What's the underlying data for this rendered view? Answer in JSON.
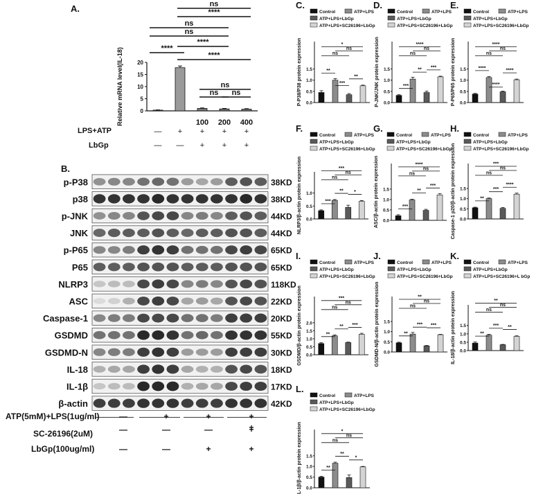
{
  "panel_letters": {
    "A": "A.",
    "B": "B.",
    "C": "C.",
    "D": "D.",
    "E": "E.",
    "F": "F.",
    "G": "G.",
    "H": "H.",
    "I": "I.",
    "J": "J.",
    "K": "K.",
    "L": "L."
  },
  "colors": {
    "control": "#111111",
    "atp_lps": "#8c8c8c",
    "lbgp": "#5a5a5a",
    "sc": "#d4d4d4",
    "blot_bg": "#f1f1f1",
    "band": "#1e1e1e"
  },
  "panelA": {
    "row_labels": [
      "LPS+ATP",
      "LbGp"
    ],
    "lps_atp": [
      "—",
      "+",
      "+",
      "+",
      "+"
    ],
    "lbgp": [
      "—",
      "—",
      "+",
      "+",
      "+"
    ],
    "dose": [
      "",
      "",
      "100",
      "200",
      "400"
    ]
  },
  "panelB": {
    "proteins": [
      "p-P38",
      "p38",
      "p-JNK",
      "JNK",
      "p-P65",
      "P65",
      "NLRP3",
      "ASC",
      "Caspase-1",
      "GSDMD",
      "GSDMD-N",
      "IL-18",
      "IL-1β",
      "β-actin"
    ],
    "sizes": [
      "38KD",
      "38KD",
      "44KD",
      "44KD",
      "65KD",
      "65KD",
      "118KD",
      "22KD",
      "20KD",
      "55KD",
      "30KD",
      "18KD",
      "17KD",
      "42KD"
    ],
    "intensity": [
      [
        0.45,
        0.5,
        0.5,
        0.6,
        0.65,
        0.6,
        0.4,
        0.35,
        0.4,
        0.7,
        0.75,
        0.7
      ],
      [
        0.9,
        0.9,
        0.9,
        0.9,
        0.95,
        0.9,
        0.9,
        0.9,
        0.9,
        0.9,
        0.95,
        0.9
      ],
      [
        0.45,
        0.5,
        0.5,
        0.75,
        0.8,
        0.8,
        0.5,
        0.55,
        0.5,
        0.7,
        0.75,
        0.7
      ],
      [
        0.65,
        0.7,
        0.7,
        0.7,
        0.75,
        0.7,
        0.65,
        0.7,
        0.7,
        0.75,
        0.75,
        0.7
      ],
      [
        0.5,
        0.5,
        0.55,
        0.85,
        0.9,
        0.85,
        0.6,
        0.6,
        0.6,
        0.8,
        0.85,
        0.8
      ],
      [
        0.7,
        0.7,
        0.7,
        0.75,
        0.75,
        0.75,
        0.7,
        0.7,
        0.7,
        0.75,
        0.75,
        0.75
      ],
      [
        0.2,
        0.25,
        0.25,
        0.8,
        0.85,
        0.8,
        0.5,
        0.55,
        0.5,
        0.75,
        0.8,
        0.75
      ],
      [
        0.1,
        0.15,
        0.3,
        0.8,
        0.85,
        0.8,
        0.35,
        0.4,
        0.35,
        0.75,
        0.8,
        0.75
      ],
      [
        0.5,
        0.55,
        0.55,
        0.8,
        0.8,
        0.8,
        0.6,
        0.6,
        0.55,
        0.85,
        0.85,
        0.85
      ],
      [
        0.6,
        0.6,
        0.6,
        0.95,
        0.95,
        0.9,
        0.6,
        0.65,
        0.6,
        0.9,
        0.9,
        0.9
      ],
      [
        0.5,
        0.55,
        0.55,
        0.85,
        0.9,
        0.85,
        0.4,
        0.4,
        0.4,
        0.85,
        0.85,
        0.85
      ],
      [
        0.3,
        0.35,
        0.35,
        0.85,
        0.9,
        0.85,
        0.35,
        0.3,
        0.3,
        0.75,
        0.8,
        0.75
      ],
      [
        0.2,
        0.25,
        0.25,
        0.95,
        0.95,
        0.95,
        0.3,
        0.35,
        0.35,
        0.8,
        0.85,
        0.85
      ],
      [
        0.85,
        0.85,
        0.85,
        0.9,
        0.9,
        0.9,
        0.85,
        0.85,
        0.85,
        0.9,
        0.9,
        0.9
      ]
    ],
    "treatment_labels": [
      "ATP(5mM)+LPS(1ug/ml)",
      "SC-26196(2uM)",
      "LbGp(100ug/ml)"
    ],
    "treatment_marks": [
      [
        "—",
        "+",
        "+",
        "+"
      ],
      [
        "—",
        "—",
        "—",
        "+"
      ],
      [
        "—",
        "—",
        "+",
        "+"
      ]
    ]
  },
  "chart_data": [
    {
      "id": "A",
      "type": "bar",
      "ylabel": "Relative mRNA level(IL-18)",
      "ylim": [
        0,
        20
      ],
      "yticks": [
        0,
        5,
        10,
        15,
        20
      ],
      "categories": [
        "",
        "",
        "100",
        "200",
        "400"
      ],
      "values": [
        0.3,
        17.8,
        1.0,
        0.8,
        0.7
      ],
      "errors": [
        0.1,
        0.7,
        0.2,
        0.2,
        0.2
      ],
      "annotations": [
        {
          "from": 1,
          "to": 4,
          "label": "ns"
        },
        {
          "from": 1,
          "to": 3,
          "label": "****"
        },
        {
          "from": 0,
          "to": 3,
          "label": "ns"
        },
        {
          "from": 0,
          "to": 2,
          "label": "ns"
        },
        {
          "from": 0,
          "to": 1,
          "label": "****"
        },
        {
          "from": 1,
          "to": 2,
          "label": "****"
        },
        {
          "from": 1,
          "to": 3,
          "label": "****"
        },
        {
          "from": 2,
          "to": 4,
          "label": "ns"
        },
        {
          "from": 2,
          "to": 3,
          "label": "ns"
        },
        {
          "from": 3,
          "to": 4,
          "label": "ns"
        }
      ]
    },
    {
      "id": "C",
      "type": "bar",
      "ylabel": "P-P38/P38 protein expression",
      "ylim": [
        0,
        1.5
      ],
      "yticks": [
        0.0,
        0.5,
        1.0,
        1.5
      ],
      "legend": [
        "Control",
        "ATP+LPS",
        "ATP+LPS+LbGp",
        "ATP+LPS+SC26196+LbGp"
      ],
      "values": [
        0.45,
        1.0,
        0.35,
        0.75
      ],
      "errors": [
        0.08,
        0.07,
        0.05,
        0.03
      ],
      "annotations": [
        {
          "from": 0,
          "to": 3,
          "label": "*"
        },
        {
          "from": 1,
          "to": 3,
          "label": "ns"
        },
        {
          "from": 0,
          "to": 2,
          "label": "ns"
        },
        {
          "from": 1,
          "to": 2,
          "label": "***"
        },
        {
          "from": 0,
          "to": 1,
          "label": "**"
        },
        {
          "from": 2,
          "to": 3,
          "label": "**"
        }
      ]
    },
    {
      "id": "D",
      "type": "bar",
      "ylabel": "P-JNK/JNK protein expression",
      "ylim": [
        0,
        1.5
      ],
      "yticks": [
        0.0,
        0.5,
        1.0,
        1.5
      ],
      "legend": [
        "Control",
        "ATP+LPS",
        "ATP+LPS+LbGp",
        "ATP+LPS+SC26196+LbGp"
      ],
      "values": [
        0.32,
        1.05,
        0.45,
        1.15
      ],
      "errors": [
        0.03,
        0.08,
        0.06,
        0.03
      ],
      "annotations": [
        {
          "from": 0,
          "to": 3,
          "label": "****"
        },
        {
          "from": 1,
          "to": 3,
          "label": "ns"
        },
        {
          "from": 0,
          "to": 2,
          "label": "ns"
        },
        {
          "from": 0,
          "to": 1,
          "label": "***"
        },
        {
          "from": 1,
          "to": 2,
          "label": "**"
        },
        {
          "from": 2,
          "to": 3,
          "label": "***"
        }
      ]
    },
    {
      "id": "E",
      "type": "bar",
      "ylabel": "P-P65/P65 protein expression",
      "ylim": [
        0,
        1.5
      ],
      "yticks": [
        0.0,
        0.5,
        1.0,
        1.5
      ],
      "legend": [
        "Control",
        "ATP+LPS",
        "ATP+LPS+LbGp",
        "ATP+LPS+SC26196+LbGp"
      ],
      "values": [
        0.38,
        1.12,
        0.48,
        1.02
      ],
      "errors": [
        0.03,
        0.04,
        0.03,
        0.03
      ],
      "annotations": [
        {
          "from": 0,
          "to": 3,
          "label": "****"
        },
        {
          "from": 1,
          "to": 3,
          "label": "ns"
        },
        {
          "from": 0,
          "to": 2,
          "label": "ns"
        },
        {
          "from": 1,
          "to": 2,
          "label": "****"
        },
        {
          "from": 0,
          "to": 1,
          "label": "****"
        },
        {
          "from": 2,
          "to": 3,
          "label": "****"
        }
      ]
    },
    {
      "id": "F",
      "type": "bar",
      "ylabel": "NLRP3/β-actin protein expression",
      "ylim": [
        0,
        1.0
      ],
      "yticks": [
        0.0,
        0.5,
        1.0
      ],
      "legend": [
        "Control",
        "ATP+LPS",
        "ATP+LPS+LbGp",
        "ATP+LPS+SC26196+LbGp"
      ],
      "values": [
        0.32,
        0.72,
        0.45,
        0.68
      ],
      "errors": [
        0.03,
        0.03,
        0.08,
        0.03
      ],
      "annotations": [
        {
          "from": 0,
          "to": 3,
          "label": "***"
        },
        {
          "from": 1,
          "to": 3,
          "label": "ns"
        },
        {
          "from": 0,
          "to": 2,
          "label": "ns"
        },
        {
          "from": 0,
          "to": 1,
          "label": "***"
        },
        {
          "from": 1,
          "to": 2,
          "label": "**"
        },
        {
          "from": 2,
          "to": 3,
          "label": "*"
        }
      ]
    },
    {
      "id": "G",
      "type": "bar",
      "ylabel": "ASC/β-actin protein expression",
      "ylim": [
        0,
        1.5
      ],
      "yticks": [
        0.0,
        0.5,
        1.0,
        1.5
      ],
      "legend": [
        "Control",
        "ATP+LPS",
        "ATP+LPS+LbGp",
        "ATP+LPS+SC26196+LbGp"
      ],
      "values": [
        0.22,
        0.98,
        0.48,
        1.22
      ],
      "errors": [
        0.05,
        0.03,
        0.05,
        0.06
      ],
      "annotations": [
        {
          "from": 0,
          "to": 3,
          "label": "****"
        },
        {
          "from": 1,
          "to": 3,
          "label": "ns"
        },
        {
          "from": 0,
          "to": 2,
          "label": "ns"
        },
        {
          "from": 0,
          "to": 1,
          "label": "***"
        },
        {
          "from": 1,
          "to": 2,
          "label": "**"
        },
        {
          "from": 2,
          "to": 3,
          "label": "***"
        }
      ]
    },
    {
      "id": "H",
      "type": "bar",
      "ylabel": "Caspase-1 p20/β-actin protein expression",
      "ylim": [
        0,
        1.5
      ],
      "yticks": [
        0.0,
        0.5,
        1.0,
        1.5
      ],
      "legend": [
        "Control",
        "ATP+LPS",
        "ATP+LPS+LbGp",
        "ATP+LPS+SC26196+LbGp"
      ],
      "values": [
        0.55,
        1.0,
        0.52,
        1.22
      ],
      "errors": [
        0.03,
        0.03,
        0.04,
        0.05
      ],
      "annotations": [
        {
          "from": 0,
          "to": 3,
          "label": "***"
        },
        {
          "from": 1,
          "to": 3,
          "label": "ns"
        },
        {
          "from": 0,
          "to": 2,
          "label": "ns"
        },
        {
          "from": 0,
          "to": 1,
          "label": "**"
        },
        {
          "from": 1,
          "to": 2,
          "label": "***"
        },
        {
          "from": 2,
          "to": 3,
          "label": "****"
        }
      ]
    },
    {
      "id": "I",
      "type": "bar",
      "ylabel": "GSDMD/β-actin protein expression",
      "ylim": [
        0,
        2.0
      ],
      "yticks": [
        0.0,
        0.5,
        1.0,
        1.5,
        2.0
      ],
      "legend": [
        "Control",
        "ATP+LPS",
        "ATP+LPS+LbGp",
        "ATP+LPS+SC26196+LbGp"
      ],
      "values": [
        0.7,
        1.18,
        0.76,
        1.28
      ],
      "errors": [
        0.05,
        0.06,
        0.03,
        0.06
      ],
      "annotations": [
        {
          "from": 0,
          "to": 3,
          "label": "***"
        },
        {
          "from": 1,
          "to": 3,
          "label": "ns"
        },
        {
          "from": 0,
          "to": 2,
          "label": "ns"
        },
        {
          "from": 0,
          "to": 1,
          "label": "**"
        },
        {
          "from": 1,
          "to": 2,
          "label": "**"
        },
        {
          "from": 2,
          "to": 3,
          "label": "***"
        }
      ]
    },
    {
      "id": "J",
      "type": "bar",
      "ylabel": "GSDMD-N/β-actin protein expression",
      "ylim": [
        0,
        1.5
      ],
      "yticks": [
        0.0,
        0.5,
        1.0,
        1.5
      ],
      "legend": [
        "Control",
        "ATP+LPS",
        "ATP+LPS+LbGp",
        "ATP+LPS+SC26196+LbGp"
      ],
      "values": [
        0.45,
        0.88,
        0.3,
        0.85
      ],
      "errors": [
        0.03,
        0.08,
        0.02,
        0.02
      ],
      "annotations": [
        {
          "from": 0,
          "to": 3,
          "label": "**"
        },
        {
          "from": 1,
          "to": 3,
          "label": "ns"
        },
        {
          "from": 0,
          "to": 2,
          "label": "ns"
        },
        {
          "from": 0,
          "to": 1,
          "label": "**"
        },
        {
          "from": 1,
          "to": 2,
          "label": "***"
        },
        {
          "from": 2,
          "to": 3,
          "label": "***"
        }
      ]
    },
    {
      "id": "K",
      "type": "bar",
      "ylabel": "IL-18/β-actin protein expression",
      "ylim": [
        0,
        1.5
      ],
      "yticks": [
        0.0,
        0.5,
        1.0,
        1.5
      ],
      "legend": [
        "Control",
        "ATP+LPS",
        "ATP+LPS+LbGp",
        "ATP+LPS+SC26196+L bGp"
      ],
      "values": [
        0.45,
        0.92,
        0.35,
        0.85
      ],
      "errors": [
        0.06,
        0.05,
        0.02,
        0.03
      ],
      "annotations": [
        {
          "from": 0,
          "to": 3,
          "label": "**"
        },
        {
          "from": 1,
          "to": 3,
          "label": "ns"
        },
        {
          "from": 0,
          "to": 2,
          "label": "ns"
        },
        {
          "from": 0,
          "to": 1,
          "label": "**"
        },
        {
          "from": 1,
          "to": 2,
          "label": "***"
        },
        {
          "from": 2,
          "to": 3,
          "label": "**"
        }
      ]
    },
    {
      "id": "L",
      "type": "bar",
      "ylabel": "IL-1β/β-actin protein expression",
      "ylim": [
        0,
        1.5
      ],
      "yticks": [
        0.0,
        0.5,
        1.0,
        1.5
      ],
      "legend": [
        "Control",
        "ATP+LPS",
        "ATP+LPS+LbGp",
        "ATP+LPS+SC26196+LbGp"
      ],
      "values": [
        0.5,
        1.15,
        0.48,
        0.98
      ],
      "errors": [
        0.04,
        0.05,
        0.12,
        0.02
      ],
      "annotations": [
        {
          "from": 0,
          "to": 3,
          "label": "*"
        },
        {
          "from": 1,
          "to": 3,
          "label": "ns"
        },
        {
          "from": 0,
          "to": 2,
          "label": "ns"
        },
        {
          "from": 0,
          "to": 1,
          "label": "**"
        },
        {
          "from": 1,
          "to": 2,
          "label": "**"
        },
        {
          "from": 2,
          "to": 3,
          "label": "*"
        }
      ]
    }
  ]
}
